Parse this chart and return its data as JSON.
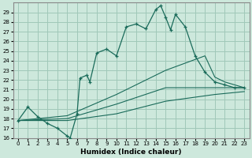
{
  "xlabel": "Humidex (Indice chaleur)",
  "bg_color": "#cde8dc",
  "grid_color": "#a0c8b8",
  "line_color": "#1a6b5a",
  "xlim": [
    -0.5,
    23.5
  ],
  "ylim": [
    16,
    30
  ],
  "yticks": [
    16,
    17,
    18,
    19,
    20,
    21,
    22,
    23,
    24,
    25,
    26,
    27,
    28,
    29
  ],
  "xticks": [
    0,
    1,
    2,
    3,
    4,
    5,
    6,
    7,
    8,
    9,
    10,
    11,
    12,
    13,
    14,
    15,
    16,
    17,
    18,
    19,
    20,
    21,
    22,
    23
  ],
  "main_line": [
    [
      0,
      17.8
    ],
    [
      1,
      19.2
    ],
    [
      2,
      18.2
    ],
    [
      3,
      17.5
    ],
    [
      4,
      17.0
    ],
    [
      5,
      16.2
    ],
    [
      5.3,
      16.0
    ],
    [
      6,
      18.5
    ],
    [
      6.3,
      22.2
    ],
    [
      7,
      22.5
    ],
    [
      7.3,
      21.8
    ],
    [
      8,
      24.8
    ],
    [
      9,
      25.2
    ],
    [
      10,
      24.5
    ],
    [
      11,
      27.5
    ],
    [
      12,
      27.8
    ],
    [
      13,
      27.3
    ],
    [
      14,
      29.3
    ],
    [
      14.5,
      29.7
    ],
    [
      15,
      28.5
    ],
    [
      15.5,
      27.2
    ],
    [
      16,
      28.8
    ],
    [
      17,
      27.5
    ],
    [
      18,
      24.5
    ],
    [
      19,
      22.8
    ],
    [
      20,
      21.8
    ],
    [
      21,
      21.5
    ],
    [
      22,
      21.2
    ],
    [
      23,
      21.2
    ]
  ],
  "line_upper": [
    [
      0,
      17.8
    ],
    [
      5,
      18.3
    ],
    [
      10,
      20.5
    ],
    [
      15,
      23.0
    ],
    [
      19,
      24.5
    ],
    [
      20,
      22.3
    ],
    [
      21,
      21.8
    ],
    [
      22,
      21.5
    ],
    [
      23,
      21.2
    ]
  ],
  "line_mid": [
    [
      0,
      17.8
    ],
    [
      5,
      18.0
    ],
    [
      10,
      19.5
    ],
    [
      15,
      21.2
    ],
    [
      20,
      21.2
    ],
    [
      23,
      21.2
    ]
  ],
  "line_lower": [
    [
      0,
      17.8
    ],
    [
      5,
      17.8
    ],
    [
      10,
      18.5
    ],
    [
      15,
      19.8
    ],
    [
      20,
      20.5
    ],
    [
      23,
      20.8
    ]
  ]
}
